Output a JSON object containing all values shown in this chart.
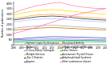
{
  "years": [
    2008,
    2009,
    2010,
    2011,
    2012,
    2013,
    2014,
    2015,
    2016,
    2017,
    2018,
    2019,
    2020
  ],
  "series": [
    {
      "name": "Systemic Lupus Erythematosus",
      "color": "#aaccff",
      "values": [
        2200,
        2300,
        2380,
        2450,
        2500,
        2520,
        2480,
        2420,
        2360,
        2320,
        2280,
        2240,
        2180
      ]
    },
    {
      "name": "Psoriasis",
      "color": "#aaaaaa",
      "values": [
        1600,
        1680,
        1750,
        1820,
        1860,
        1880,
        1850,
        1800,
        1740,
        1700,
        1660,
        1620,
        1580
      ]
    },
    {
      "name": "Primary Biliary Cholangitis",
      "color": "#8888ee",
      "values": [
        480,
        500,
        520,
        540,
        560,
        575,
        570,
        560,
        545,
        530,
        515,
        505,
        495
      ]
    },
    {
      "name": "Multiple Sclerosis",
      "color": "#ffaa44",
      "values": [
        2550,
        2650,
        2780,
        2880,
        2920,
        2960,
        2900,
        2840,
        2760,
        2680,
        2630,
        2580,
        2520
      ]
    },
    {
      "name": "Type 1 Diabetes",
      "color": "#333333",
      "values": [
        2400,
        2500,
        2600,
        2700,
        2750,
        2780,
        2740,
        2680,
        2600,
        2520,
        2470,
        2420,
        2380
      ]
    },
    {
      "name": "Sjogrens",
      "color": "#4444bb",
      "values": [
        550,
        600,
        660,
        710,
        750,
        780,
        770,
        760,
        740,
        720,
        700,
        680,
        660
      ]
    },
    {
      "name": "Rheumatoid Arthritis",
      "color": "#ffdd00",
      "values": [
        2900,
        3050,
        3180,
        3300,
        3360,
        3400,
        3360,
        3280,
        3200,
        3120,
        3060,
        3000,
        2960
      ]
    },
    {
      "name": "Inflammatory Bowel Disease",
      "color": "#ff88bb",
      "values": [
        3100,
        3350,
        3580,
        3780,
        3900,
        4020,
        4100,
        3900,
        3740,
        3640,
        3560,
        3500,
        3520
      ]
    },
    {
      "name": "Celiac Disease",
      "color": "#44bb44",
      "values": [
        220,
        240,
        265,
        285,
        305,
        320,
        320,
        315,
        305,
        295,
        285,
        275,
        265
      ]
    },
    {
      "name": "Autoimmune Thyroid Disease",
      "color": "#cc7700",
      "values": [
        1420,
        1480,
        1540,
        1600,
        1640,
        1660,
        1640,
        1600,
        1560,
        1520,
        1490,
        1460,
        1440
      ]
    },
    {
      "name": "Antiphospholipid Syndrome",
      "color": "#008888",
      "values": [
        370,
        390,
        410,
        430,
        445,
        455,
        450,
        440,
        430,
        420,
        410,
        400,
        390
      ]
    },
    {
      "name": "Other autoimmune disease",
      "color": "#ff77cc",
      "values": [
        1100,
        1280,
        1480,
        1700,
        1950,
        2180,
        2420,
        2650,
        2880,
        3050,
        3200,
        3380,
        3500
      ]
    }
  ],
  "ylim": [
    0,
    4200
  ],
  "yticks": [
    0,
    500,
    1000,
    1500,
    2000,
    2500,
    3000,
    3500,
    4000
  ],
  "ytick_labels": [
    "0",
    "500",
    "1,000",
    "1,500",
    "2,000",
    "2,500",
    "3,000",
    "3,500",
    "4,000"
  ],
  "ylabel": "Number of publications",
  "background_color": "#ffffff"
}
